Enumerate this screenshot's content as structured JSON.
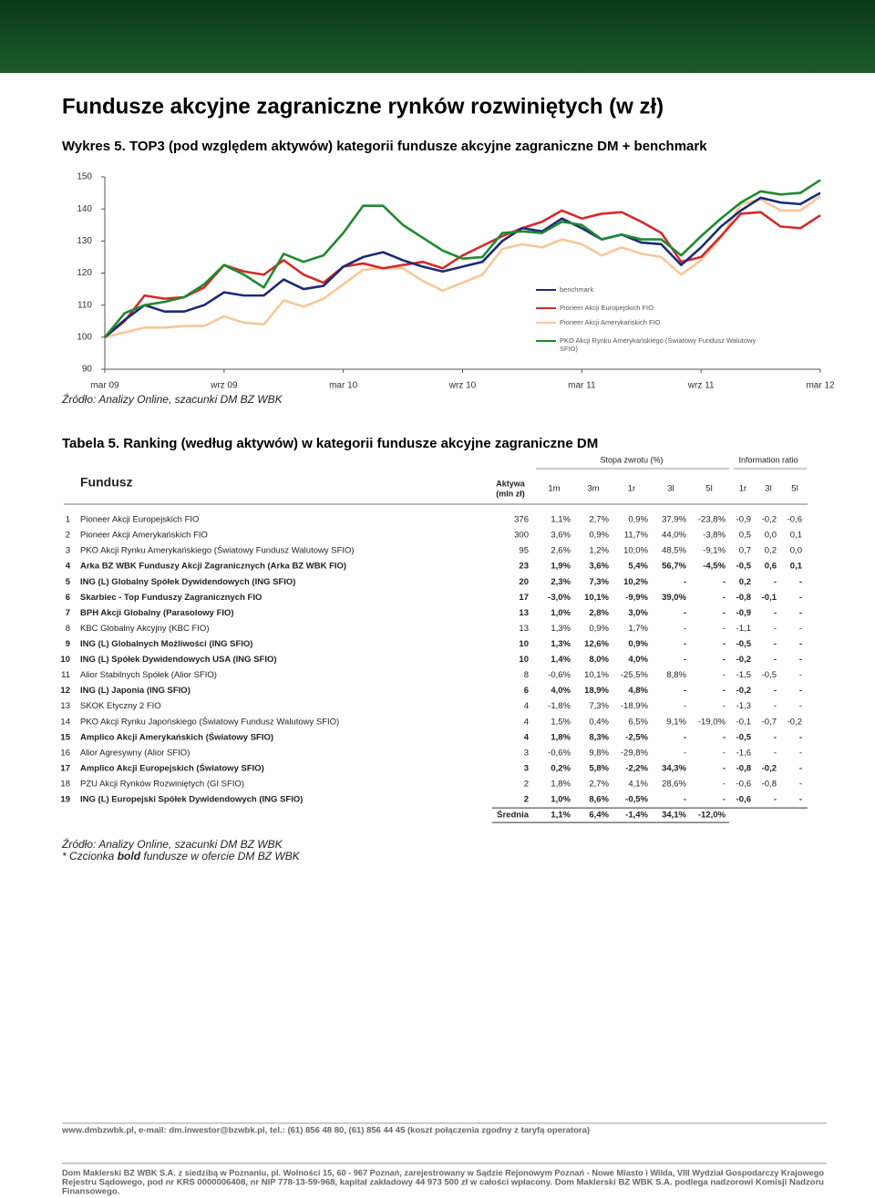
{
  "header": {
    "title": "Fundusze akcyjne zagraniczne rynków rozwiniętych (w zł)"
  },
  "chart_data": {
    "type": "line",
    "title": "Wykres 5. TOP3 (pod względem aktywów) kategorii fundusze akcyjne zagraniczne DM + benchmark",
    "categories": [
      "mar 09",
      null,
      null,
      null,
      null,
      null,
      "wrz 09",
      null,
      null,
      null,
      null,
      null,
      "mar 10",
      null,
      null,
      null,
      null,
      null,
      "wrz 10",
      null,
      null,
      null,
      null,
      null,
      "mar 11",
      null,
      null,
      null,
      null,
      null,
      "wrz 11",
      null,
      null,
      null,
      null,
      null,
      "mar 12"
    ],
    "ylim": [
      90,
      150
    ],
    "yticks": [
      90,
      100,
      110,
      120,
      130,
      140,
      150
    ],
    "series": [
      {
        "name": "benchmark",
        "color": "#1c2a78",
        "values": [
          100,
          105.4,
          110,
          108,
          108,
          110,
          114,
          113,
          113,
          118,
          115,
          116,
          122,
          125,
          126.5,
          124,
          122,
          120.5,
          122,
          123.5,
          130,
          134,
          133,
          137,
          134,
          130.5,
          132,
          129.5,
          129,
          122.5,
          128,
          134.5,
          139.5,
          143.5,
          142,
          141.5,
          145
        ]
      },
      {
        "name": "Pioneer Akcji Europejskich FIO",
        "color": "#d42a2a",
        "values": [
          100,
          105,
          113,
          112,
          112.5,
          115.5,
          122.5,
          120.5,
          119.5,
          124,
          119.5,
          117,
          122,
          123,
          121.5,
          122.5,
          123.5,
          121.5,
          125.5,
          128.5,
          131.5,
          134,
          136,
          139.5,
          137,
          138.5,
          139,
          136,
          132.5,
          123.5,
          125,
          131.5,
          138.5,
          139,
          134.5,
          134,
          138
        ]
      },
      {
        "name": "Pioneer Akcji Amerykańskich FIO",
        "color": "#f8c799",
        "values": [
          100,
          101.5,
          103,
          103,
          103.5,
          103.5,
          106.5,
          104.5,
          104,
          111.5,
          109.5,
          112,
          116.5,
          121,
          121.5,
          121.5,
          117.5,
          114.5,
          117,
          119.5,
          127.5,
          129,
          128,
          130.5,
          129,
          125.5,
          128,
          126,
          125,
          119.5,
          124,
          131,
          141.5,
          143,
          139.5,
          139.5,
          144
        ]
      },
      {
        "name": "PKO Akcji Rynku Amerykańskiego (Światowy Fundusz Walutowy SFIO)",
        "color": "#1f8a30",
        "values": [
          100,
          107.5,
          110,
          111,
          112.5,
          116.5,
          122.5,
          119.5,
          115.5,
          126,
          123.5,
          125.5,
          132.5,
          141,
          141,
          135,
          131,
          127,
          124.5,
          125,
          132.5,
          133,
          132.5,
          136,
          135,
          130.5,
          132,
          130.5,
          130.5,
          125.5,
          131.5,
          137,
          142,
          145.5,
          144.5,
          145,
          149
        ]
      }
    ],
    "source": "Źródło: Analizy Online, szacunki DM BZ WBK"
  },
  "table": {
    "title": "Tabela 5. Ranking (według aktywów) w kategorii fundusze akcyjne zagraniczne DM",
    "group_headers": [
      "Stopa zwrotu (%)",
      "Information ratio"
    ],
    "fund_header": "Fundusz",
    "assets_header": [
      "Aktywa",
      "(mln zł)"
    ],
    "columns": [
      "1m",
      "3m",
      "1r",
      "3l",
      "5l",
      "1r",
      "3l",
      "5l"
    ],
    "rows": [
      {
        "no": "1",
        "name": "Pioneer Akcji Europejskich FIO",
        "assets": "376",
        "cells": [
          "1,1%",
          "2,7%",
          "0,9%",
          "37,9%",
          "-23,8%",
          "-0,9",
          "-0,2",
          "-0,6"
        ],
        "bold": false
      },
      {
        "no": "2",
        "name": "Pioneer Akcji Amerykańskich FIO",
        "assets": "300",
        "cells": [
          "3,6%",
          "0,9%",
          "11,7%",
          "44,0%",
          "-3,8%",
          "0,5",
          "0,0",
          "0,1"
        ],
        "bold": false
      },
      {
        "no": "3",
        "name": "PKO Akcji Rynku Amerykańskiego (Światowy Fundusz Walutowy SFIO)",
        "assets": "95",
        "cells": [
          "2,6%",
          "1,2%",
          "10,0%",
          "48,5%",
          "-9,1%",
          "0,7",
          "0,2",
          "0,0"
        ],
        "bold": false
      },
      {
        "no": "4",
        "name": "Arka BZ WBK Funduszy Akcji Zagranicznych (Arka BZ WBK FIO)",
        "assets": "23",
        "cells": [
          "1,9%",
          "3,6%",
          "5,4%",
          "56,7%",
          "-4,5%",
          "-0,5",
          "0,6",
          "0,1"
        ],
        "bold": true
      },
      {
        "no": "5",
        "name": "ING (L) Globalny Spółek Dywidendowych (ING SFIO)",
        "assets": "20",
        "cells": [
          "2,3%",
          "7,3%",
          "10,2%",
          "-",
          "-",
          "0,2",
          "-",
          "-"
        ],
        "bold": true
      },
      {
        "no": "6",
        "name": "Skarbiec - Top Funduszy Zagranicznych FIO",
        "assets": "17",
        "cells": [
          "-3,0%",
          "10,1%",
          "-9,9%",
          "39,0%",
          "-",
          "-0,8",
          "-0,1",
          "-"
        ],
        "bold": true
      },
      {
        "no": "7",
        "name": "BPH Akcji Globalny (Parasolowy FIO)",
        "assets": "13",
        "cells": [
          "1,0%",
          "2,8%",
          "3,0%",
          "-",
          "-",
          "-0,9",
          "-",
          "-"
        ],
        "bold": true
      },
      {
        "no": "8",
        "name": "KBC Globalny Akcyjny (KBC FIO)",
        "assets": "13",
        "cells": [
          "1,3%",
          "0,9%",
          "1,7%",
          "-",
          "-",
          "-1,1",
          "-",
          "-"
        ],
        "bold": false
      },
      {
        "no": "9",
        "name": "ING (L) Globalnych Możliwości (ING SFIO)",
        "assets": "10",
        "cells": [
          "1,3%",
          "12,6%",
          "0,9%",
          "-",
          "-",
          "-0,5",
          "-",
          "-"
        ],
        "bold": true
      },
      {
        "no": "10",
        "name": "ING (L) Spółek Dywidendowych USA (ING SFIO)",
        "assets": "10",
        "cells": [
          "1,4%",
          "8,0%",
          "4,0%",
          "-",
          "-",
          "-0,2",
          "-",
          "-"
        ],
        "bold": true
      },
      {
        "no": "11",
        "name": "Alior Stabilnych Spółek (Alior SFIO)",
        "assets": "8",
        "cells": [
          "-0,6%",
          "10,1%",
          "-25,5%",
          "8,8%",
          "-",
          "-1,5",
          "-0,5",
          "-"
        ],
        "bold": false
      },
      {
        "no": "12",
        "name": "ING (L) Japonia (ING SFIO)",
        "assets": "6",
        "cells": [
          "4,0%",
          "18,9%",
          "4,8%",
          "-",
          "-",
          "-0,2",
          "-",
          "-"
        ],
        "bold": true
      },
      {
        "no": "13",
        "name": "SKOK Etyczny 2 FIO",
        "assets": "4",
        "cells": [
          "-1,8%",
          "7,3%",
          "-18,9%",
          "-",
          "-",
          "-1,3",
          "-",
          "-"
        ],
        "bold": false
      },
      {
        "no": "14",
        "name": "PKO Akcji Rynku Japońskiego (Światowy Fundusz Walutowy SFIO)",
        "assets": "4",
        "cells": [
          "1,5%",
          "0,4%",
          "6,5%",
          "9,1%",
          "-19,0%",
          "-0,1",
          "-0,7",
          "-0,2"
        ],
        "bold": false
      },
      {
        "no": "15",
        "name": "Amplico Akcji Amerykańskich (Światowy SFIO)",
        "assets": "4",
        "cells": [
          "1,8%",
          "8,3%",
          "-2,5%",
          "-",
          "-",
          "-0,5",
          "-",
          "-"
        ],
        "bold": true
      },
      {
        "no": "16",
        "name": "Alior Agresywny (Alior SFIO)",
        "assets": "3",
        "cells": [
          "-0,6%",
          "9,8%",
          "-29,8%",
          "-",
          "-",
          "-1,6",
          "-",
          "-"
        ],
        "bold": false
      },
      {
        "no": "17",
        "name": "Amplico Akcji Europejskich (Światowy SFIO)",
        "assets": "3",
        "cells": [
          "0,2%",
          "5,8%",
          "-2,2%",
          "34,3%",
          "-",
          "-0,8",
          "-0,2",
          "-"
        ],
        "bold": true
      },
      {
        "no": "18",
        "name": "PZU Akcji Rynków Rozwiniętych (GI SFIO)",
        "assets": "2",
        "cells": [
          "1,8%",
          "2,7%",
          "4,1%",
          "28,6%",
          "-",
          "-0,6",
          "-0,8",
          "-"
        ],
        "bold": false
      },
      {
        "no": "19",
        "name": "ING (L) Europejski Spółek Dywidendowych (ING SFIO)",
        "assets": "2",
        "cells": [
          "1,0%",
          "8,6%",
          "-0,5%",
          "-",
          "-",
          "-0,6",
          "-",
          "-"
        ],
        "bold": true
      }
    ],
    "average": {
      "label": "Średnia",
      "cells": [
        "1,1%",
        "6,4%",
        "-1,4%",
        "34,1%",
        "-12,0%"
      ]
    },
    "source": "Źródło: Analizy Online, szacunki DM BZ WBK",
    "note": [
      "* Czcionka ",
      "bold",
      " fundusze w ofercie DM BZ WBK"
    ]
  },
  "footer": {
    "contact": "www.dmbzwbk.pl, e-mail: dm.inwestor@bzwbk.pl, tel.: (61) 856 48 80, (61) 856 44 45 (koszt połączenia zgodny z taryfą operatora)",
    "legal": [
      "Dom Maklerski BZ WBK S.A. z siedzibą w Poznaniu, pl. Wolności 15, 60 - 967 Poznań, zarejestrowany w Sądzie Rejonowym Poznań - Nowe Miasto i Wilda, VIII Wydział Gospodarczy Krajowego",
      "Rejestru Sądowego, pod nr KRS 0000006408, nr NIP 778-13-59-968, kapitał zakładowy 44 973 500 zł w całości wpłacony. Dom Maklerski BZ WBK S.A. podlega nadzorowi Komisji Nadzoru",
      "Finansowego."
    ]
  }
}
